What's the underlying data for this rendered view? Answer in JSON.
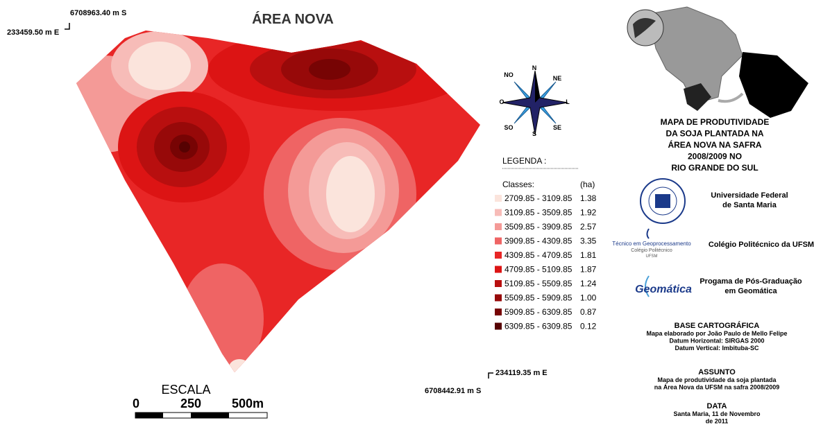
{
  "map": {
    "title": "ÁREA NOVA",
    "coords": {
      "top_n": "6708963.40 m S",
      "top_e": "233459.50 m E",
      "bottom_e": "234119.35 m E",
      "bottom_n": "6708442.91 m S"
    },
    "compass": {
      "n": "N",
      "ne": "NE",
      "e": "L",
      "se": "SE",
      "s": "S",
      "sw": "SO",
      "w": "O",
      "nw": "NO"
    },
    "legend": {
      "title": "LEGENDA :",
      "col_class": "Classes:",
      "col_area": "(ha)",
      "rows": [
        {
          "range": "2709.85 - 3109.85",
          "area": "1.38",
          "color": "#fbe4dc"
        },
        {
          "range": "3109.85 - 3509.85",
          "area": "1.92",
          "color": "#f7bcb8"
        },
        {
          "range": "3509.85 - 3909.85",
          "area": "2.57",
          "color": "#f49a97"
        },
        {
          "range": "3909.85 - 4309.85",
          "area": "3.35",
          "color": "#ef6464"
        },
        {
          "range": "4309.85 - 4709.85",
          "area": "1.81",
          "color": "#e82626"
        },
        {
          "range": "4709.85 - 5109.85",
          "area": "1.87",
          "color": "#dc1414"
        },
        {
          "range": "5109.85 - 5509.85",
          "area": "1.24",
          "color": "#b80f0f"
        },
        {
          "range": "5509.85 - 5909.85",
          "area": "1.00",
          "color": "#970909"
        },
        {
          "range": "5909.85 - 6309.85",
          "area": "0.87",
          "color": "#770404"
        },
        {
          "range": "6309.85 - 6309.85",
          "area": "0.12",
          "color": "#560202"
        }
      ]
    },
    "scale": {
      "title": "ESCALA",
      "labels": [
        "0",
        "250",
        "500m"
      ]
    }
  },
  "panel": {
    "map_title": [
      "MAPA DE PRODUTIVIDADE",
      "DA SOJA PLANTADA NA",
      "ÁREA NOVA NA SAFRA",
      "2008/2009 NO",
      "RIO GRANDE DO SUL"
    ],
    "institutions": [
      {
        "name": [
          "Universidade Federal",
          "de Santa Maria"
        ]
      },
      {
        "name": [
          "Colégio Politécnico da UFSM"
        ],
        "logo": [
          "Técnico em Geoprocessamento",
          "Colégio Politécnico",
          "UFSM"
        ]
      },
      {
        "name": [
          "Progama de Pós-Graduação",
          "em Geomática"
        ],
        "logo": [
          "Geomática"
        ]
      }
    ],
    "base": {
      "title": "BASE CARTOGRÁFICA",
      "lines": [
        "Mapa elaborado por João Paulo de Mello Felipe",
        "Datum Horizontal: SIRGAS 2000",
        "Datum Vertical: Imbituba-SC"
      ]
    },
    "subject": {
      "title": "ASSUNTO",
      "lines": [
        "Mapa de produtividade da soja plantada",
        "na Área Nova da UFSM na safra 2008/2009"
      ]
    },
    "date": {
      "title": "DATA",
      "lines": [
        "Santa Maria, 11 de Novembro",
        "de 2011"
      ]
    }
  }
}
